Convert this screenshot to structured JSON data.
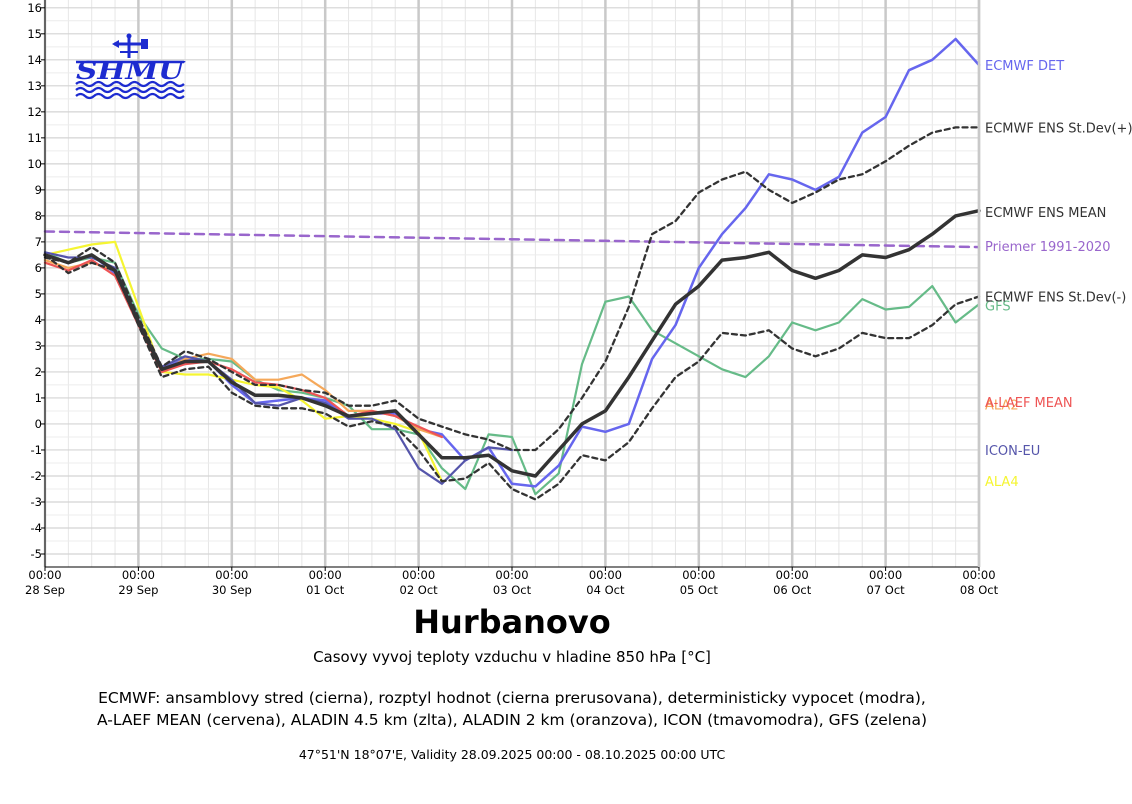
{
  "chart_data": {
    "type": "line",
    "title": "Hurbanovo",
    "subtitle": "Casovy vyvoj teploty vzduchu v hladine 850 hPa [°C]",
    "description_lines": [
      "ECMWF: ansamblovy stred (cierna), rozptyl hodnot (cierna prerusovana), deterministicky vypocet (modra),",
      "A-LAEF MEAN (cervena), ALADIN 4.5 km (zlta), ALADIN 2 km (oranzova), ICON (tmavomodra), GFS (zelena)"
    ],
    "footer": "47°51'N 18°07'E, Validity 28.09.2025 00:00 - 08.10.2025 00:00 UTC",
    "logo_text": "SHMU",
    "grid": true,
    "x_unit": "hours since 28.09.2025 00:00 UTC",
    "xlim": [
      0,
      240
    ],
    "ylim": [
      -5.5,
      16.3
    ],
    "y_ticks": [
      -5,
      -4,
      -3,
      -2,
      -1,
      0,
      1,
      2,
      3,
      4,
      5,
      6,
      7,
      8,
      9,
      10,
      11,
      12,
      13,
      14,
      15,
      16
    ],
    "x_ticks": [
      {
        "x": 0,
        "time": "00:00",
        "date": "28 Sep"
      },
      {
        "x": 24,
        "time": "00:00",
        "date": "29 Sep"
      },
      {
        "x": 48,
        "time": "00:00",
        "date": "30 Sep"
      },
      {
        "x": 72,
        "time": "00:00",
        "date": "01 Oct"
      },
      {
        "x": 96,
        "time": "00:00",
        "date": "02 Oct"
      },
      {
        "x": 120,
        "time": "00:00",
        "date": "03 Oct"
      },
      {
        "x": 144,
        "time": "00:00",
        "date": "04 Oct"
      },
      {
        "x": 168,
        "time": "00:00",
        "date": "05 Oct"
      },
      {
        "x": 192,
        "time": "00:00",
        "date": "06 Oct"
      },
      {
        "x": 216,
        "time": "00:00",
        "date": "07 Oct"
      },
      {
        "x": 240,
        "time": "00:00",
        "date": "08 Oct"
      }
    ],
    "series": [
      {
        "name": "Priemer 1991-2020",
        "color": "#9966cc",
        "dash": "9,6",
        "width": 2.5,
        "label_y": 6.85,
        "x": [
          0,
          240
        ],
        "y": [
          7.4,
          6.8
        ]
      },
      {
        "name": "GFS",
        "color": "#66bb88",
        "width": 2.2,
        "label_y": 4.55,
        "x": [
          0,
          6,
          12,
          18,
          24,
          30,
          36,
          42,
          48,
          54,
          60,
          66,
          72,
          78,
          84,
          90,
          96,
          102,
          108,
          114,
          120,
          126,
          132,
          138,
          144,
          150,
          156,
          162,
          168,
          174,
          180,
          186,
          192,
          198,
          204,
          210,
          216,
          222,
          228,
          234,
          240
        ],
        "y": [
          6.6,
          6.2,
          6.4,
          6.2,
          4.2,
          2.9,
          2.5,
          2.5,
          2.4,
          1.7,
          1.3,
          1.2,
          1.0,
          0.7,
          -0.2,
          -0.2,
          -0.4,
          -1.7,
          -2.5,
          -0.4,
          -0.5,
          -2.7,
          -1.9,
          2.3,
          4.7,
          4.9,
          3.6,
          3.1,
          2.6,
          2.1,
          1.8,
          2.6,
          3.9,
          3.6,
          3.9,
          4.8,
          4.4,
          4.5,
          5.3,
          3.9,
          4.6
        ]
      },
      {
        "name": "ECMWF DET",
        "color": "#6666ee",
        "width": 2.5,
        "label_y": 13.8,
        "x": [
          0,
          6,
          12,
          18,
          24,
          30,
          36,
          42,
          48,
          54,
          60,
          66,
          72,
          78,
          84,
          90,
          96,
          102,
          108,
          114,
          120,
          126,
          132,
          138,
          144,
          150,
          156,
          162,
          168,
          174,
          180,
          186,
          192,
          198,
          204,
          210,
          216,
          222,
          228,
          234,
          240
        ],
        "y": [
          6.5,
          6.2,
          6.5,
          5.8,
          4.0,
          2.1,
          2.5,
          2.4,
          1.5,
          0.8,
          0.9,
          1.0,
          0.9,
          0.3,
          0.4,
          0.4,
          -0.2,
          -0.4,
          -1.4,
          -0.9,
          -2.3,
          -2.4,
          -1.6,
          -0.1,
          -0.3,
          0.0,
          2.5,
          3.8,
          6.0,
          7.3,
          8.3,
          9.6,
          9.4,
          9.0,
          9.5,
          11.2,
          11.8,
          13.6,
          14.0,
          14.8,
          13.8
        ]
      },
      {
        "name": "ALA4",
        "color": "#f5f532",
        "width": 2.2,
        "label_y": -2.2,
        "x": [
          0,
          6,
          12,
          18,
          24,
          30,
          36,
          42,
          48,
          54,
          60,
          66,
          72,
          78,
          84,
          90,
          96,
          102
        ],
        "y": [
          6.5,
          6.7,
          6.9,
          7.0,
          4.5,
          2.0,
          1.9,
          1.9,
          1.7,
          1.5,
          1.4,
          0.9,
          0.2,
          0.3,
          0.2,
          0.0,
          -0.3,
          -2.2
        ]
      },
      {
        "name": "ALA2",
        "color": "#f5a85a",
        "width": 2.2,
        "label_y": 0.75,
        "x": [
          0,
          6,
          12,
          18,
          24,
          30,
          36,
          42,
          48,
          54,
          60,
          66,
          72,
          78,
          84,
          90,
          96,
          102
        ],
        "y": [
          6.3,
          6.0,
          6.2,
          5.9,
          4.0,
          2.0,
          2.5,
          2.7,
          2.5,
          1.7,
          1.7,
          1.9,
          1.3,
          0.5,
          0.5,
          0.3,
          -0.2,
          -0.5
        ]
      },
      {
        "name": "A-LAEF MEAN",
        "color": "#ee5555",
        "width": 2.2,
        "label_y": 0.85,
        "x": [
          0,
          6,
          12,
          18,
          24,
          30,
          36,
          42,
          48,
          54,
          60,
          66,
          72,
          78,
          84,
          90,
          96,
          102
        ],
        "y": [
          6.2,
          5.9,
          6.3,
          5.7,
          3.8,
          2.0,
          2.3,
          2.4,
          2.1,
          1.6,
          1.5,
          1.3,
          1.0,
          0.3,
          0.5,
          0.3,
          -0.1,
          -0.5
        ]
      },
      {
        "name": "ICON-EU",
        "color": "#5555aa",
        "width": 2.2,
        "label_y": -1.0,
        "x": [
          0,
          6,
          12,
          18,
          24,
          30,
          36,
          42,
          48,
          54,
          60,
          66,
          72,
          78,
          84,
          90,
          96,
          102,
          108,
          114,
          120
        ],
        "y": [
          6.6,
          6.4,
          6.4,
          6.0,
          4.0,
          2.2,
          2.6,
          2.4,
          1.7,
          0.8,
          0.7,
          1.0,
          0.8,
          0.2,
          0.2,
          -0.2,
          -1.7,
          -2.3,
          -1.4,
          -0.9,
          -1.0
        ]
      },
      {
        "name": "ECMWF ENS St.Dev(+)",
        "color": "#333333",
        "dash": "5,4",
        "width": 2.3,
        "label_y": 11.4,
        "x": [
          0,
          6,
          12,
          18,
          24,
          30,
          36,
          42,
          48,
          54,
          60,
          66,
          72,
          78,
          84,
          90,
          96,
          102,
          108,
          114,
          120,
          126,
          132,
          138,
          144,
          150,
          156,
          162,
          168,
          174,
          180,
          186,
          192,
          198,
          204,
          210,
          216,
          222,
          228,
          234,
          240
        ],
        "y": [
          6.4,
          6.2,
          6.8,
          6.2,
          4.1,
          2.2,
          2.8,
          2.5,
          2.0,
          1.5,
          1.5,
          1.3,
          1.2,
          0.7,
          0.7,
          0.9,
          0.2,
          -0.1,
          -0.4,
          -0.6,
          -1.0,
          -1.0,
          -0.2,
          1.0,
          2.4,
          4.5,
          7.3,
          7.8,
          8.9,
          9.4,
          9.7,
          9.0,
          8.5,
          8.9,
          9.4,
          9.6,
          10.1,
          10.7,
          11.2,
          11.4,
          11.4
        ]
      },
      {
        "name": "ECMWF ENS St.Dev(-)",
        "color": "#333333",
        "dash": "5,4",
        "width": 2.3,
        "label_y": 4.9,
        "x": [
          0,
          6,
          12,
          18,
          24,
          30,
          36,
          42,
          48,
          54,
          60,
          66,
          72,
          78,
          84,
          90,
          96,
          102,
          108,
          114,
          120,
          126,
          132,
          138,
          144,
          150,
          156,
          162,
          168,
          174,
          180,
          186,
          192,
          198,
          204,
          210,
          216,
          222,
          228,
          234,
          240
        ],
        "y": [
          6.5,
          5.8,
          6.2,
          5.9,
          3.8,
          1.8,
          2.1,
          2.2,
          1.2,
          0.7,
          0.6,
          0.6,
          0.4,
          -0.1,
          0.1,
          -0.1,
          -1.0,
          -2.2,
          -2.1,
          -1.5,
          -2.5,
          -2.9,
          -2.3,
          -1.2,
          -1.4,
          -0.7,
          0.6,
          1.8,
          2.4,
          3.5,
          3.4,
          3.6,
          2.9,
          2.6,
          2.9,
          3.5,
          3.3,
          3.3,
          3.8,
          4.6,
          4.9
        ]
      },
      {
        "name": "ECMWF ENS MEAN",
        "color": "#333333",
        "width": 3.5,
        "label_y": 8.15,
        "x": [
          0,
          6,
          12,
          18,
          24,
          30,
          36,
          42,
          48,
          54,
          60,
          66,
          72,
          78,
          84,
          90,
          96,
          102,
          108,
          114,
          120,
          126,
          132,
          138,
          144,
          150,
          156,
          162,
          168,
          174,
          180,
          186,
          192,
          198,
          204,
          210,
          216,
          222,
          228,
          234,
          240
        ],
        "y": [
          6.5,
          6.2,
          6.5,
          5.9,
          3.9,
          2.1,
          2.4,
          2.4,
          1.6,
          1.1,
          1.1,
          1.0,
          0.7,
          0.3,
          0.4,
          0.5,
          -0.4,
          -1.3,
          -1.3,
          -1.2,
          -1.8,
          -2.0,
          -1.0,
          0.0,
          0.5,
          1.8,
          3.2,
          4.6,
          5.3,
          6.3,
          6.4,
          6.6,
          5.9,
          5.6,
          5.9,
          6.5,
          6.4,
          6.7,
          7.3,
          8.0,
          8.2
        ]
      }
    ]
  }
}
